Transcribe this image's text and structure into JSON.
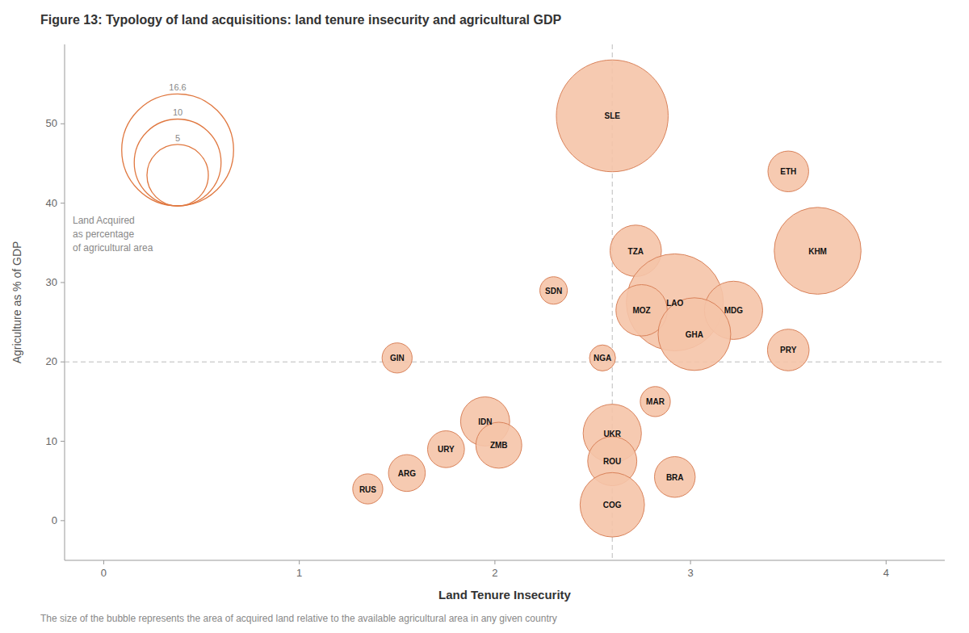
{
  "chart_data": {
    "type": "bubble",
    "title": "Figure 13: Typology of land acquisitions: land tenure insecurity and agricultural GDP",
    "x_label": "Land Tenure Insecurity",
    "y_label": "Agriculture as % of GDP",
    "footnote": "The size of the bubble represents the area of acquired land relative to the available agricultural area in any given country",
    "labels": [
      "SLE",
      "ETH",
      "TZA",
      "KHM",
      "SDN",
      "LAO",
      "MOZ",
      "MDG",
      "GHA",
      "GIN",
      "NGA",
      "PRY",
      "MAR",
      "IDN",
      "ZMB",
      "URY",
      "UKR",
      "ROU",
      "ARG",
      "RUS",
      "BRA",
      "COG"
    ],
    "x": [
      2.6,
      3.5,
      2.72,
      3.65,
      2.3,
      2.92,
      2.75,
      3.22,
      3.02,
      1.5,
      2.55,
      3.5,
      2.82,
      1.95,
      2.02,
      1.75,
      2.6,
      2.6,
      1.55,
      1.35,
      2.92,
      2.6
    ],
    "values": [
      51.0,
      44.0,
      34.0,
      34.0,
      29.0,
      27.5,
      26.5,
      26.5,
      23.5,
      20.5,
      20.5,
      21.5,
      15.0,
      12.5,
      9.5,
      9.0,
      11.0,
      7.5,
      6.0,
      4.0,
      5.5,
      2.0
    ],
    "sizes": [
      16.6,
      2.2,
      3.5,
      10.0,
      1.0,
      12.5,
      3.5,
      4.5,
      7.0,
      1.2,
      0.9,
      2.3,
      1.2,
      3.2,
      2.8,
      1.8,
      4.5,
      3.2,
      1.8,
      1.2,
      2.2,
      5.5
    ],
    "color": "#F5C4A8",
    "hline": 20,
    "vline": 2.6,
    "size_legend": {
      "title": "Land Acquired\nas percentage\nof agricultural area",
      "sizes": [
        16.6,
        10,
        5
      ]
    },
    "xlim": [
      -0.2,
      4.3
    ],
    "ylim": [
      -5,
      60
    ],
    "xticks": [
      0,
      1,
      2,
      3,
      4
    ],
    "yticks": [
      0,
      10,
      20,
      30,
      40,
      50
    ],
    "grid": false
  }
}
